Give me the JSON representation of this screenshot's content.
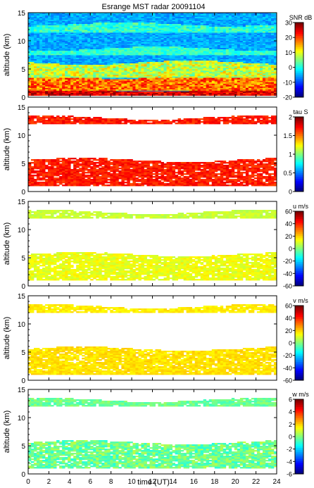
{
  "chart_data": {
    "type": "heatmap",
    "title": "Esrange MST radar 20091104",
    "xlabel": "time (UT)",
    "xlim": [
      0,
      24
    ],
    "x_ticks": [
      "0",
      "2",
      "4",
      "6",
      "8",
      "10",
      "12",
      "14",
      "16",
      "18",
      "20",
      "22",
      "24"
    ],
    "panels": [
      {
        "ylabel": "altitude (km)",
        "ylim": [
          0,
          15
        ],
        "y_ticks": [
          "0",
          "5",
          "10",
          "15"
        ],
        "colorbar_label": "SNR dB",
        "colorbar_ticks": [
          "30",
          "20",
          "10",
          "0",
          "-10",
          "-20"
        ],
        "clim": [
          -20,
          30
        ],
        "layers": [
          {
            "alt_min": 0.3,
            "alt_max": 15,
            "base": -8,
            "peak": -3,
            "bg": true
          },
          {
            "alt_min": 0.3,
            "alt_max": 1.2,
            "base": 20,
            "peak": 30
          },
          {
            "alt_min": 1.2,
            "alt_max": 3.5,
            "base": 12,
            "peak": 25
          },
          {
            "alt_min": 3.5,
            "alt_max": 6.0,
            "base": 2,
            "peak": 15
          },
          {
            "alt_min": 7.5,
            "alt_max": 8.5,
            "base": -2,
            "peak": 4
          },
          {
            "alt_min": 11.5,
            "alt_max": 12.8,
            "base": -3,
            "peak": 5
          }
        ]
      },
      {
        "ylabel": "altitude (km)",
        "ylim": [
          0,
          15
        ],
        "y_ticks": [
          "0",
          "5",
          "10",
          "15"
        ],
        "colorbar_label": "tau S",
        "colorbar_ticks": [
          "2",
          "1.5",
          "1",
          "0.5",
          "0"
        ],
        "clim": [
          0,
          2
        ],
        "layers": [
          {
            "alt_min": 1.0,
            "alt_max": 5.5,
            "base": 1.6,
            "peak": 1.8
          },
          {
            "alt_min": 12.0,
            "alt_max": 13.0,
            "base": 1.6,
            "peak": 1.8
          }
        ]
      },
      {
        "ylabel": "altitude (km)",
        "ylim": [
          0,
          15
        ],
        "y_ticks": [
          "0",
          "5",
          "10",
          "15"
        ],
        "colorbar_label": "u m/s",
        "colorbar_ticks": [
          "60",
          "40",
          "20",
          "0",
          "-20",
          "-40",
          "-60"
        ],
        "clim": [
          -60,
          60
        ],
        "layers": [
          {
            "alt_min": 1.0,
            "alt_max": 5.5,
            "base": 8,
            "peak": 18
          },
          {
            "alt_min": 12.0,
            "alt_max": 13.0,
            "base": 5,
            "peak": 12
          }
        ]
      },
      {
        "ylabel": "altitude (km)",
        "ylim": [
          0,
          15
        ],
        "y_ticks": [
          "0",
          "5",
          "10",
          "15"
        ],
        "colorbar_label": "v m/s",
        "colorbar_ticks": [
          "60",
          "40",
          "20",
          "0",
          "-20",
          "-40",
          "-60"
        ],
        "clim": [
          -60,
          60
        ],
        "layers": [
          {
            "alt_min": 1.0,
            "alt_max": 5.5,
            "base": 15,
            "peak": 22
          },
          {
            "alt_min": 12.0,
            "alt_max": 13.0,
            "base": 14,
            "peak": 20
          }
        ]
      },
      {
        "ylabel": "altitude (km)",
        "ylim": [
          0,
          15
        ],
        "y_ticks": [
          "0",
          "5",
          "10",
          "15"
        ],
        "colorbar_label": "w m/s",
        "colorbar_ticks": [
          "6",
          "4",
          "2",
          "0",
          "-2",
          "-4",
          "-6"
        ],
        "clim": [
          -6,
          6
        ],
        "layers": [
          {
            "alt_min": 1.0,
            "alt_max": 5.5,
            "base": -1.2,
            "peak": 0.8
          },
          {
            "alt_min": 12.0,
            "alt_max": 13.0,
            "base": -0.8,
            "peak": 0.4
          }
        ]
      }
    ]
  }
}
